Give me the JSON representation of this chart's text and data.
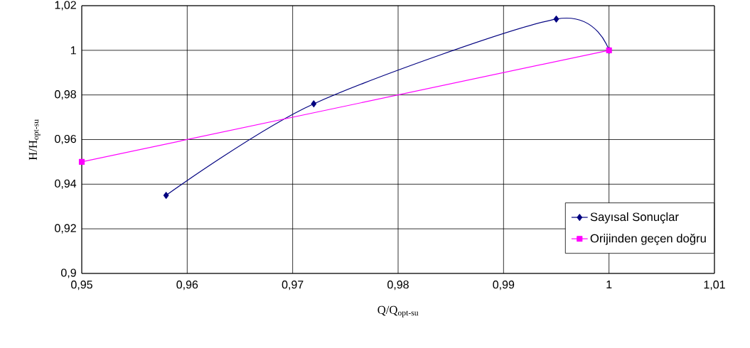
{
  "chart_data": {
    "type": "line",
    "xlabel": "Q/Q$_{opt-su}$",
    "ylabel": "H/H$_{opt-su}$",
    "series": [
      {
        "name": "Sayısal Sonuçlar",
        "color": "#000080",
        "marker": "diamond",
        "line_style": "solid",
        "x": [
          0.958,
          0.972,
          0.995,
          1.0
        ],
        "values": [
          0.935,
          0.976,
          1.014,
          1.0
        ]
      },
      {
        "name": "Orijinden geçen doğru",
        "color": "#ff00ff",
        "marker": "square",
        "line_style": "solid",
        "x": [
          0.95,
          1.0
        ],
        "values": [
          0.95,
          1.0
        ]
      }
    ],
    "xlim": [
      0.95,
      1.01
    ],
    "ylim": [
      0.9,
      1.02
    ],
    "xticks": [
      {
        "value": 0.95,
        "label": "0,95"
      },
      {
        "value": 0.96,
        "label": "0,96"
      },
      {
        "value": 0.97,
        "label": "0,97"
      },
      {
        "value": 0.98,
        "label": "0,98"
      },
      {
        "value": 0.99,
        "label": "0,99"
      },
      {
        "value": 1,
        "label": "1"
      },
      {
        "value": 1.01,
        "label": "1,01"
      }
    ],
    "yticks": [
      {
        "value": 0.9,
        "label": "0,9"
      },
      {
        "value": 0.92,
        "label": "0,92"
      },
      {
        "value": 0.94,
        "label": "0,94"
      },
      {
        "value": 0.96,
        "label": "0,96"
      },
      {
        "value": 0.98,
        "label": "0,98"
      },
      {
        "value": 1,
        "label": "1"
      },
      {
        "value": 1.02,
        "label": "1,02"
      }
    ],
    "grid": true,
    "legend": "bottom right"
  }
}
